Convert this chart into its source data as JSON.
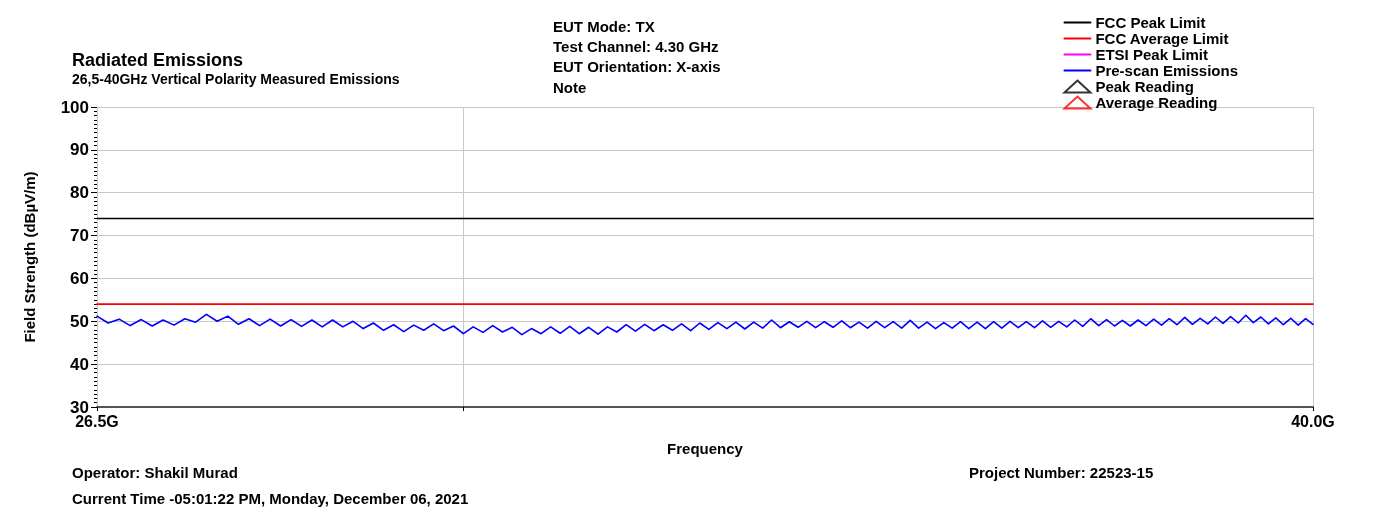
{
  "chart_data": {
    "type": "line",
    "title": "Radiated Emissions",
    "subtitle": "26,5-40GHz Vertical Polarity Measured Emissions",
    "xlabel": "Frequency",
    "ylabel": "Field Strength (dBµV/m)",
    "annotations": [
      "EUT Mode: TX",
      "Test Channel: 4.30 GHz",
      "EUT Orientation: X-axis",
      "Note",
      "Operator: Shakil Murad",
      "Current Time -05:01:22 PM, Monday, December 06, 2021",
      "Project Number: 22523-15"
    ],
    "log": "x",
    "xlim": [
      26.5,
      40
    ],
    "xticks": [
      {
        "value": 26.5,
        "label": "26.5G"
      },
      {
        "value": 30,
        "label": null
      },
      {
        "value": 40,
        "label": "40.0G"
      }
    ],
    "ylim": [
      30,
      100
    ],
    "yticks": [
      30,
      40,
      50,
      60,
      70,
      80,
      90,
      100
    ],
    "grid": true,
    "legend": "top right",
    "x": [
      26.5,
      26.6,
      26.7,
      26.8,
      26.9,
      27.0,
      27.1,
      27.2,
      27.3,
      27.4,
      27.5,
      27.6,
      27.7,
      27.8,
      27.9,
      28.0,
      28.1,
      28.2,
      28.3,
      28.4,
      28.5,
      28.6,
      28.7,
      28.8,
      28.9,
      29.0,
      29.1,
      29.2,
      29.3,
      29.4,
      29.5,
      29.6,
      29.7,
      29.8,
      29.9,
      30.0,
      30.1,
      30.2,
      30.3,
      30.4,
      30.5,
      30.6,
      30.7,
      30.8,
      30.9,
      31.0,
      31.1,
      31.2,
      31.3,
      31.4,
      31.5,
      31.6,
      31.7,
      31.8,
      31.9,
      32.0,
      32.1,
      32.2,
      32.3,
      32.4,
      32.5,
      32.6,
      32.7,
      32.8,
      32.9,
      33.0,
      33.1,
      33.2,
      33.3,
      33.4,
      33.5,
      33.6,
      33.7,
      33.8,
      33.9,
      34.0,
      34.1,
      34.2,
      34.3,
      34.4,
      34.5,
      34.6,
      34.7,
      34.8,
      34.9,
      35.0,
      35.1,
      35.2,
      35.3,
      35.4,
      35.5,
      35.6,
      35.7,
      35.8,
      35.9,
      36.0,
      36.1,
      36.2,
      36.3,
      36.4,
      36.5,
      36.6,
      36.7,
      36.8,
      36.9,
      37.0,
      37.1,
      37.2,
      37.3,
      37.4,
      37.5,
      37.6,
      37.7,
      37.8,
      37.9,
      38.0,
      38.1,
      38.2,
      38.3,
      38.4,
      38.5,
      38.6,
      38.7,
      38.8,
      38.9,
      39.0,
      39.1,
      39.2,
      39.3,
      39.4,
      39.5,
      39.6,
      39.7,
      39.8,
      39.9,
      40.0
    ],
    "series": [
      {
        "name": "FCC Peak Limit",
        "color": "#000000",
        "values": [
          74,
          74,
          74,
          74,
          74,
          74,
          74,
          74,
          74,
          74,
          74,
          74,
          74,
          74,
          74,
          74,
          74,
          74,
          74,
          74,
          74,
          74,
          74,
          74,
          74,
          74,
          74,
          74,
          74,
          74,
          74,
          74,
          74,
          74,
          74,
          74,
          74,
          74,
          74,
          74,
          74,
          74,
          74,
          74,
          74,
          74,
          74,
          74,
          74,
          74,
          74,
          74,
          74,
          74,
          74,
          74,
          74,
          74,
          74,
          74,
          74,
          74,
          74,
          74,
          74,
          74,
          74,
          74,
          74,
          74,
          74,
          74,
          74,
          74,
          74,
          74,
          74,
          74,
          74,
          74,
          74,
          74,
          74,
          74,
          74,
          74,
          74,
          74,
          74,
          74,
          74,
          74,
          74,
          74,
          74,
          74,
          74,
          74,
          74,
          74,
          74,
          74,
          74,
          74,
          74,
          74,
          74,
          74,
          74,
          74,
          74,
          74,
          74,
          74,
          74,
          74,
          74,
          74,
          74,
          74,
          74,
          74,
          74,
          74,
          74,
          74,
          74,
          74,
          74,
          74,
          74,
          74,
          74,
          74,
          74,
          74
        ]
      },
      {
        "name": "FCC Average Limit",
        "color": "#ff0000",
        "values": [
          54,
          54,
          54,
          54,
          54,
          54,
          54,
          54,
          54,
          54,
          54,
          54,
          54,
          54,
          54,
          54,
          54,
          54,
          54,
          54,
          54,
          54,
          54,
          54,
          54,
          54,
          54,
          54,
          54,
          54,
          54,
          54,
          54,
          54,
          54,
          54,
          54,
          54,
          54,
          54,
          54,
          54,
          54,
          54,
          54,
          54,
          54,
          54,
          54,
          54,
          54,
          54,
          54,
          54,
          54,
          54,
          54,
          54,
          54,
          54,
          54,
          54,
          54,
          54,
          54,
          54,
          54,
          54,
          54,
          54,
          54,
          54,
          54,
          54,
          54,
          54,
          54,
          54,
          54,
          54,
          54,
          54,
          54,
          54,
          54,
          54,
          54,
          54,
          54,
          54,
          54,
          54,
          54,
          54,
          54,
          54,
          54,
          54,
          54,
          54,
          54,
          54,
          54,
          54,
          54,
          54,
          54,
          54,
          54,
          54,
          54,
          54,
          54,
          54,
          54,
          54,
          54,
          54,
          54,
          54,
          54,
          54,
          54,
          54,
          54,
          54,
          54,
          54,
          54,
          54,
          54,
          54,
          54,
          54,
          54,
          54
        ]
      },
      {
        "name": "ETSI Peak Limit",
        "color": "#ff00ff",
        "values": [
          null,
          null,
          null,
          null,
          null,
          null,
          null,
          null,
          null,
          null,
          null,
          null,
          null,
          null,
          null,
          null,
          null,
          null,
          null,
          null,
          null,
          null,
          null,
          null,
          null,
          null,
          null,
          null,
          null,
          null,
          null,
          null,
          null,
          null,
          null,
          null,
          null,
          null,
          null,
          null,
          null,
          null,
          null,
          null,
          null,
          null,
          null,
          null,
          null,
          null,
          null,
          null,
          null,
          null,
          null,
          null,
          null,
          null,
          null,
          null,
          null,
          null,
          null,
          null,
          null,
          null,
          null,
          null,
          null,
          null,
          null,
          null,
          null,
          null,
          null,
          null,
          null,
          null,
          null,
          null,
          null,
          null,
          null,
          null,
          null,
          null,
          null,
          null,
          null,
          null,
          null,
          null,
          null,
          null,
          null,
          null,
          null,
          null,
          null,
          null,
          null,
          null,
          null,
          null,
          null,
          null,
          null,
          null,
          null,
          null,
          null,
          null,
          null,
          null,
          null,
          null,
          null,
          null,
          null,
          null,
          null,
          null,
          null,
          null,
          null,
          null,
          null,
          null,
          null,
          null,
          null,
          null,
          null,
          null,
          null,
          null
        ]
      },
      {
        "name": "Pre-scan Emissions",
        "color": "#0000ff",
        "values": [
          51.2,
          49.6,
          50.5,
          49.0,
          50.4,
          48.9,
          50.3,
          49.1,
          50.6,
          49.8,
          51.6,
          50.0,
          51.2,
          49.3,
          50.6,
          49.0,
          50.5,
          48.9,
          50.4,
          48.8,
          50.3,
          48.7,
          50.3,
          48.7,
          50.0,
          48.3,
          49.6,
          47.9,
          49.2,
          47.6,
          49.1,
          47.9,
          49.4,
          47.8,
          48.9,
          47.1,
          48.7,
          47.4,
          49.0,
          47.5,
          48.6,
          46.9,
          48.3,
          47.1,
          48.7,
          47.2,
          48.8,
          47.1,
          48.6,
          47.0,
          48.7,
          47.5,
          49.2,
          47.7,
          49.3,
          47.8,
          49.2,
          47.9,
          49.4,
          47.8,
          49.6,
          48.1,
          49.7,
          48.3,
          49.8,
          48.2,
          49.8,
          48.4,
          50.3,
          48.5,
          49.9,
          48.6,
          50.0,
          48.5,
          49.9,
          48.6,
          50.1,
          48.5,
          49.8,
          48.4,
          50.0,
          48.5,
          49.9,
          48.4,
          50.2,
          48.4,
          49.8,
          48.3,
          49.7,
          48.4,
          49.9,
          48.3,
          49.8,
          48.3,
          49.9,
          48.4,
          50.0,
          48.5,
          49.9,
          48.5,
          50.1,
          48.6,
          50.0,
          48.7,
          50.3,
          48.8,
          50.6,
          49.0,
          50.4,
          48.9,
          50.2,
          48.9,
          50.3,
          49.0,
          50.5,
          49.1,
          50.6,
          49.2,
          50.9,
          49.3,
          50.7,
          49.4,
          51.0,
          49.5,
          51.1,
          49.6,
          51.4,
          49.7,
          51.0,
          49.4,
          50.8,
          49.2,
          50.7,
          49.1,
          50.6,
          49.3
        ]
      },
      {
        "name": "Peak Reading",
        "type": "scatter",
        "color": "#000000",
        "marker": "triangle",
        "values": [
          null,
          null,
          null,
          null,
          null,
          null,
          null,
          null,
          null,
          null,
          null,
          null,
          null,
          null,
          null,
          null,
          null,
          null,
          null,
          null,
          null,
          null,
          null,
          null,
          null,
          null,
          null,
          null,
          null,
          null,
          null,
          null,
          null,
          null,
          null,
          null,
          null,
          null,
          null,
          null,
          null,
          null,
          null,
          null,
          null,
          null,
          null,
          null,
          null,
          null,
          null,
          null,
          null,
          null,
          null,
          null,
          null,
          null,
          null,
          null,
          null,
          null,
          null,
          null,
          null,
          null,
          null,
          null,
          null,
          null,
          null,
          null,
          null,
          null,
          null,
          null,
          null,
          null,
          null,
          null,
          null,
          null,
          null,
          null,
          null,
          null,
          null,
          null,
          null,
          null,
          null,
          null,
          null,
          null,
          null,
          null,
          null,
          null,
          null,
          null,
          null,
          null,
          null,
          null,
          null,
          null,
          null,
          null,
          null,
          null,
          null,
          null,
          null,
          null,
          null,
          null,
          null,
          null,
          null,
          null,
          null,
          null,
          null,
          null,
          null,
          null,
          null,
          null,
          null,
          null,
          null,
          null,
          null,
          null,
          null,
          null
        ]
      },
      {
        "name": "Average Reading",
        "type": "scatter",
        "color": "#ff0000",
        "marker": "triangle",
        "values": [
          null,
          null,
          null,
          null,
          null,
          null,
          null,
          null,
          null,
          null,
          null,
          null,
          null,
          null,
          null,
          null,
          null,
          null,
          null,
          null,
          null,
          null,
          null,
          null,
          null,
          null,
          null,
          null,
          null,
          null,
          null,
          null,
          null,
          null,
          null,
          null,
          null,
          null,
          null,
          null,
          null,
          null,
          null,
          null,
          null,
          null,
          null,
          null,
          null,
          null,
          null,
          null,
          null,
          null,
          null,
          null,
          null,
          null,
          null,
          null,
          null,
          null,
          null,
          null,
          null,
          null,
          null,
          null,
          null,
          null,
          null,
          null,
          null,
          null,
          null,
          null,
          null,
          null,
          null,
          null,
          null,
          null,
          null,
          null,
          null,
          null,
          null,
          null,
          null,
          null,
          null,
          null,
          null,
          null,
          null,
          null,
          null,
          null,
          null,
          null,
          null,
          null,
          null,
          null,
          null,
          null,
          null,
          null,
          null,
          null,
          null,
          null,
          null,
          null,
          null,
          null,
          null,
          null,
          null,
          null,
          null,
          null,
          null,
          null,
          null,
          null,
          null,
          null,
          null,
          null,
          null,
          null,
          null,
          null,
          null,
          null
        ]
      }
    ]
  }
}
